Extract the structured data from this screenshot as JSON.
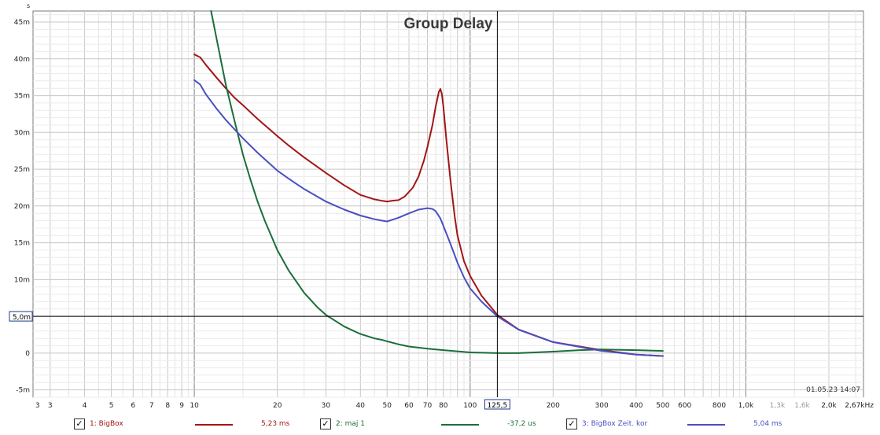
{
  "window": {
    "corner_label": "s",
    "timestamp": "01.05.23 14:07"
  },
  "chart_data": {
    "type": "line",
    "title": "Group Delay",
    "xlabel": "",
    "ylabel": "s",
    "xscale": "log",
    "xlim": [
      2.6,
      2670
    ],
    "ylim": [
      -0.006,
      0.0465
    ],
    "grid": true,
    "x_tick_labels": [
      {
        "v": 2.7,
        "t": "3"
      },
      {
        "v": 3,
        "t": "3"
      },
      {
        "v": 4,
        "t": "4"
      },
      {
        "v": 5,
        "t": "5"
      },
      {
        "v": 6,
        "t": "6"
      },
      {
        "v": 7,
        "t": "7"
      },
      {
        "v": 8,
        "t": "8"
      },
      {
        "v": 9,
        "t": "9"
      },
      {
        "v": 10,
        "t": "10"
      },
      {
        "v": 20,
        "t": "20"
      },
      {
        "v": 30,
        "t": "30"
      },
      {
        "v": 40,
        "t": "40"
      },
      {
        "v": 50,
        "t": "50"
      },
      {
        "v": 60,
        "t": "60"
      },
      {
        "v": 70,
        "t": "70"
      },
      {
        "v": 80,
        "t": "80"
      },
      {
        "v": 100,
        "t": "100"
      },
      {
        "v": 200,
        "t": "200"
      },
      {
        "v": 300,
        "t": "300"
      },
      {
        "v": 400,
        "t": "400"
      },
      {
        "v": 500,
        "t": "500"
      },
      {
        "v": 600,
        "t": "600"
      },
      {
        "v": 800,
        "t": "800"
      },
      {
        "v": 1000,
        "t": "1,0k"
      },
      {
        "v": 1300,
        "t": "1,3k",
        "faded": true
      },
      {
        "v": 1600,
        "t": "1,6k",
        "faded": true
      },
      {
        "v": 2000,
        "t": "2,0k"
      },
      {
        "v": 2670,
        "t": "2,67kHz"
      }
    ],
    "y_tick_labels": [
      {
        "v": 0.045,
        "t": "45m"
      },
      {
        "v": 0.04,
        "t": "40m"
      },
      {
        "v": 0.035,
        "t": "35m"
      },
      {
        "v": 0.03,
        "t": "30m"
      },
      {
        "v": 0.025,
        "t": "25m"
      },
      {
        "v": 0.02,
        "t": "20m"
      },
      {
        "v": 0.015,
        "t": "15m"
      },
      {
        "v": 0.01,
        "t": "10m"
      },
      {
        "v": 0,
        "t": "0"
      },
      {
        "v": -0.005,
        "t": "-5m"
      }
    ],
    "cursor": {
      "x": 125.5,
      "x_label": "125,5",
      "y": 0.005,
      "y_label": "5,0m"
    },
    "series": [
      {
        "name": "1: BigBox",
        "color": "#a31515",
        "cursor_value": "5,23 ms",
        "x": [
          10,
          10.5,
          11,
          12,
          13,
          14,
          15,
          17,
          20,
          22,
          25,
          30,
          35,
          40,
          45,
          48,
          50,
          52,
          55,
          58,
          62,
          65,
          68,
          70,
          73,
          75,
          77,
          78,
          79,
          80,
          82,
          85,
          88,
          90,
          95,
          100,
          110,
          125.5,
          150,
          200,
          300,
          400,
          500
        ],
        "y": [
          0.0406,
          0.0402,
          0.0392,
          0.0375,
          0.036,
          0.0347,
          0.0337,
          0.0318,
          0.0295,
          0.0282,
          0.0266,
          0.0245,
          0.0228,
          0.0215,
          0.0209,
          0.0207,
          0.0206,
          0.0207,
          0.0208,
          0.0213,
          0.0225,
          0.024,
          0.0262,
          0.028,
          0.031,
          0.0335,
          0.0355,
          0.0359,
          0.0352,
          0.0335,
          0.029,
          0.0233,
          0.0185,
          0.016,
          0.0125,
          0.0105,
          0.0078,
          0.0052,
          0.0032,
          0.0015,
          0.0004,
          -0.0002,
          -0.0004
        ]
      },
      {
        "name": "2: maj 1",
        "color": "#1a6e3a",
        "cursor_value": "-37,2 us",
        "x": [
          11.5,
          12,
          13,
          14,
          15,
          16,
          17,
          18,
          20,
          22,
          25,
          28,
          30,
          35,
          40,
          45,
          48,
          50,
          55,
          60,
          70,
          80,
          100,
          125.5,
          150,
          200,
          250,
          300,
          400,
          500
        ],
        "y": [
          0.0465,
          0.043,
          0.0365,
          0.0315,
          0.027,
          0.0235,
          0.0205,
          0.018,
          0.014,
          0.0112,
          0.0082,
          0.0062,
          0.0052,
          0.0036,
          0.0026,
          0.002,
          0.0018,
          0.0016,
          0.0012,
          0.0009,
          0.0006,
          0.0004,
          0.0001,
          0.0,
          0.0,
          0.0002,
          0.0004,
          0.0005,
          0.0004,
          0.0003
        ]
      },
      {
        "name": "3: BigBox Zeit. kor",
        "color": "#4a4fc0",
        "cursor_value": "5,04 ms",
        "x": [
          10,
          10.5,
          11,
          12,
          13,
          14,
          15,
          17,
          20,
          22,
          25,
          30,
          35,
          40,
          45,
          48,
          50,
          52,
          55,
          60,
          65,
          70,
          73,
          75,
          78,
          80,
          85,
          90,
          95,
          100,
          110,
          125.5,
          150,
          200,
          300,
          400,
          500
        ],
        "y": [
          0.0371,
          0.0365,
          0.0352,
          0.0333,
          0.0317,
          0.0304,
          0.0292,
          0.0272,
          0.0248,
          0.0237,
          0.0223,
          0.0206,
          0.0195,
          0.0187,
          0.0182,
          0.018,
          0.0179,
          0.0181,
          0.0184,
          0.019,
          0.0195,
          0.0197,
          0.0196,
          0.0193,
          0.0183,
          0.0173,
          0.0148,
          0.0123,
          0.0103,
          0.0088,
          0.007,
          0.005,
          0.0032,
          0.0015,
          0.0003,
          -0.0002,
          -0.0004
        ]
      }
    ]
  }
}
